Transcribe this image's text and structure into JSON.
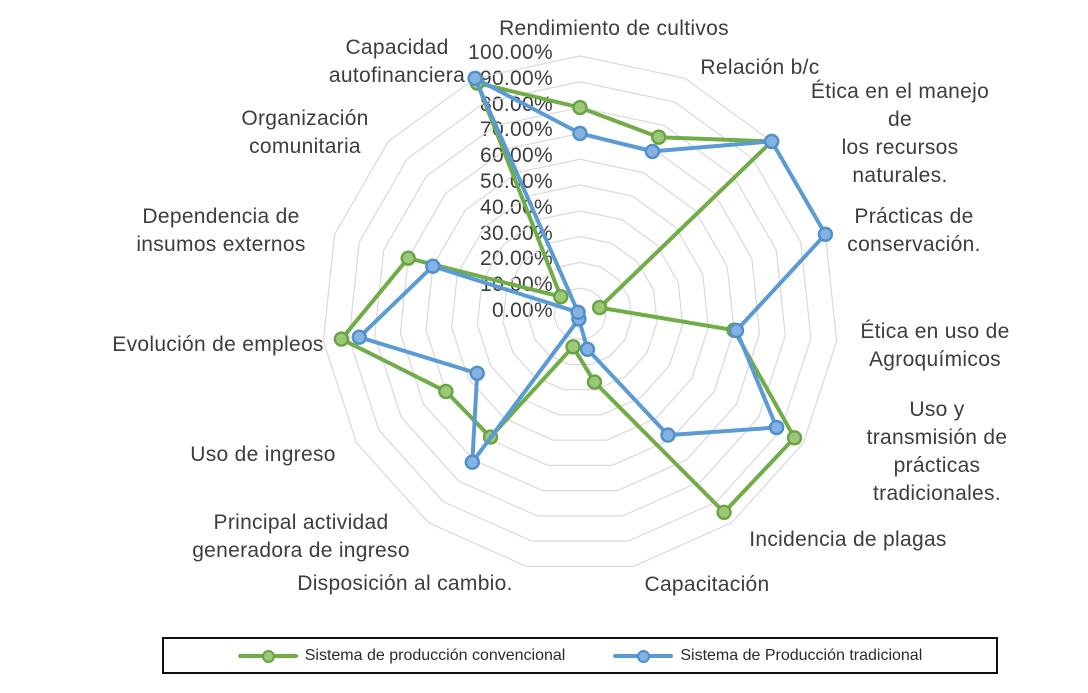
{
  "chart_data": {
    "type": "radar",
    "title": "",
    "legend_position": "bottom",
    "grid": true,
    "grid_color": "#D9D9D9",
    "axis": {
      "min": 0,
      "max": 100,
      "step": 10,
      "ticks": [
        "100.00%",
        "90.00%",
        "80.00%",
        "70.00%",
        "60.00%",
        "50.00%",
        "40.00%",
        "30.00%",
        "20.00%",
        "10.00%",
        "0.00%"
      ]
    },
    "categories": [
      "Rendimiento de cultivos",
      "Relación b/c",
      "Ética en el manejo de\nlos recursos naturales.",
      "Prácticas de\nconservación.",
      "Ética en uso de\nAgroquímicos",
      "Uso y transmisión de\nprácticas tradicionales.",
      "Incidencia de plagas",
      "Capacitación",
      "Disposición al cambio.",
      "Principal actividad\ngeneradora de ingreso",
      "Uso de ingreso",
      "Evolución de empleos",
      "Dependencia de\ninsumos externos",
      "Organización\ncomunitaria",
      "Capacidad\nautofinanciera"
    ],
    "series": [
      {
        "name": "Sistema de producción convencional",
        "color": "#70AD47",
        "marker_fill": "#9CC878",
        "marker_border": "#6AA343",
        "values": [
          80,
          75,
          100,
          8,
          60,
          96,
          95,
          27,
          13,
          59,
          60,
          93,
          70,
          10,
          98
        ]
      },
      {
        "name": "Sistema de Producción tradicional",
        "color": "#5B9BD5",
        "marker_fill": "#85B2E0",
        "marker_border": "#4F8FCE",
        "values": [
          70,
          69,
          100,
          100,
          61,
          88,
          58,
          14,
          2,
          71,
          46,
          86,
          60,
          1,
          100
        ]
      }
    ]
  }
}
